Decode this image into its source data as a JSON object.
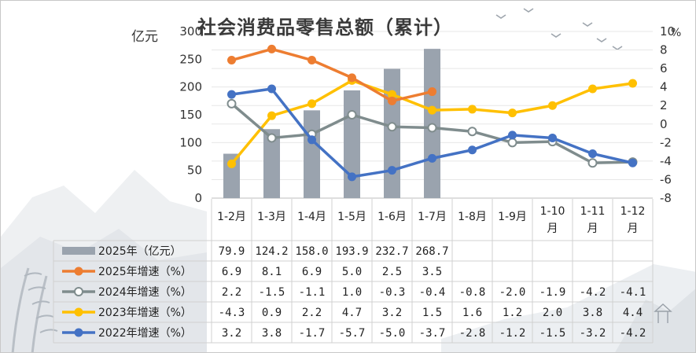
{
  "title": "社会消费品零售总额（累计）",
  "y_left_unit": "亿元",
  "y_right_unit": "%",
  "chart_data": {
    "type": "bar+line",
    "title": "社会消费品零售总额（累计）",
    "categories": [
      "1-2月",
      "1-3月",
      "1-4月",
      "1-5月",
      "1-6月",
      "1-7月",
      "1-8月",
      "1-9月",
      "1-10月",
      "1-11月",
      "1-12月"
    ],
    "bar_series": {
      "name": "2025年（亿元）",
      "color": "#9aa3ae",
      "axis": "left",
      "values": [
        79.9,
        124.2,
        158.0,
        193.9,
        232.7,
        268.7
      ],
      "labels": [
        "79.9",
        "124.2",
        "158.0",
        "193.9",
        "232.7",
        "268.7"
      ]
    },
    "line_series": [
      {
        "name": "2025年增速（%）",
        "color": "#ed7d31",
        "marker": "filled",
        "values": [
          6.9,
          8.1,
          6.9,
          5.0,
          2.5,
          3.5
        ],
        "labels": [
          "6.9",
          "8.1",
          "6.9",
          "5.0",
          "2.5",
          "3.5"
        ]
      },
      {
        "name": "2024年增速（%）",
        "color": "#7f8c8d",
        "marker": "hollow",
        "values": [
          2.2,
          -1.5,
          -1.1,
          1.0,
          -0.3,
          -0.4,
          -0.8,
          -2.0,
          -1.9,
          -4.2,
          -4.1
        ],
        "labels": [
          "2.2",
          "-1.5",
          "-1.1",
          "1.0",
          "-0.3",
          "-0.4",
          "-0.8",
          "-2.0",
          "-1.9",
          "-4.2",
          "-4.1"
        ]
      },
      {
        "name": "2023年增速（%）",
        "color": "#ffc000",
        "marker": "filled",
        "values": [
          -4.3,
          0.9,
          2.2,
          4.7,
          3.2,
          1.5,
          1.6,
          1.2,
          2.0,
          3.8,
          4.4
        ],
        "labels": [
          "-4.3",
          "0.9",
          "2.2",
          "4.7",
          "3.2",
          "1.5",
          "1.6",
          "1.2",
          "2.0",
          "3.8",
          "4.4"
        ]
      },
      {
        "name": "2022年增速（%）",
        "color": "#4472c4",
        "marker": "filled",
        "values": [
          3.2,
          3.8,
          -1.7,
          -5.7,
          -5.0,
          -3.7,
          -2.8,
          -1.2,
          -1.5,
          -3.2,
          -4.2
        ],
        "labels": [
          "3.2",
          "3.8",
          "-1.7",
          "-5.7",
          "-5.0",
          "-3.7",
          "-2.8",
          "-1.2",
          "-1.5",
          "-3.2",
          "-4.2"
        ]
      }
    ],
    "y_left": {
      "min": 0,
      "max": 300,
      "ticks": [
        "0",
        "50",
        "100",
        "150",
        "200",
        "250",
        "300"
      ]
    },
    "y_right": {
      "min": -8,
      "max": 10,
      "ticks": [
        "-8",
        "-6",
        "-4",
        "-2",
        "0",
        "2",
        "4",
        "6",
        "8",
        "10"
      ]
    },
    "grid": true,
    "legend": "data table below chart"
  }
}
